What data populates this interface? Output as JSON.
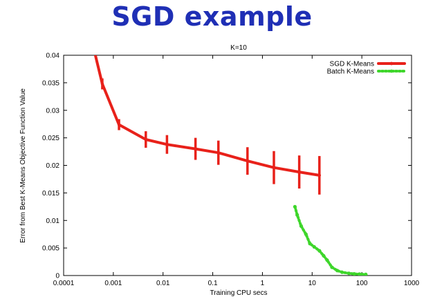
{
  "slide": {
    "title": "SGD example"
  },
  "chart_data": {
    "type": "line",
    "title": "K=10",
    "xlabel": "Training CPU secs",
    "ylabel": "Error from Best K-Means Objective Function Value",
    "xscale": "log",
    "xlim": [
      0.0001,
      1000
    ],
    "ylim": [
      0,
      0.04
    ],
    "xticks": [
      0.0001,
      0.001,
      0.01,
      0.1,
      1,
      10,
      100,
      1000
    ],
    "xtick_labels": [
      "0.0001",
      "0.001",
      "0.01",
      "0.1",
      "1",
      "10",
      "100",
      "1000"
    ],
    "yticks": [
      0,
      0.005,
      0.01,
      0.015,
      0.02,
      0.025,
      0.03,
      0.035,
      0.04
    ],
    "ytick_labels": [
      "0",
      "0.005",
      "0.01",
      "0.015",
      "0.02",
      "0.025",
      "0.03",
      "0.035",
      "0.04"
    ],
    "grid": false,
    "legend_position": "top-right",
    "series": [
      {
        "name": "SGD K-Means",
        "color": "#e8211a",
        "style": "solid",
        "x": [
          0.00043,
          0.0006,
          0.0013,
          0.0045,
          0.012,
          0.045,
          0.13,
          0.5,
          1.7,
          5.5,
          14
        ],
        "y": [
          0.0402,
          0.0348,
          0.0274,
          0.0247,
          0.0238,
          0.023,
          0.0223,
          0.0208,
          0.0196,
          0.0188,
          0.0182
        ],
        "err": [
          0,
          0.001,
          0.001,
          0.0015,
          0.0017,
          0.002,
          0.0022,
          0.0025,
          0.003,
          0.003,
          0.0035
        ]
      },
      {
        "name": "Batch K-Means",
        "color": "#3ed62b",
        "style": "dotted",
        "x": [
          4.5,
          5,
          6,
          7.5,
          9,
          11,
          14,
          17,
          20,
          25,
          32,
          40,
          55,
          70,
          90,
          120
        ],
        "y": [
          0.0125,
          0.011,
          0.009,
          0.0075,
          0.0058,
          0.0052,
          0.0045,
          0.0036,
          0.0028,
          0.0015,
          0.0009,
          0.0006,
          0.0004,
          0.0003,
          0.00025,
          0.0002
        ]
      }
    ]
  }
}
